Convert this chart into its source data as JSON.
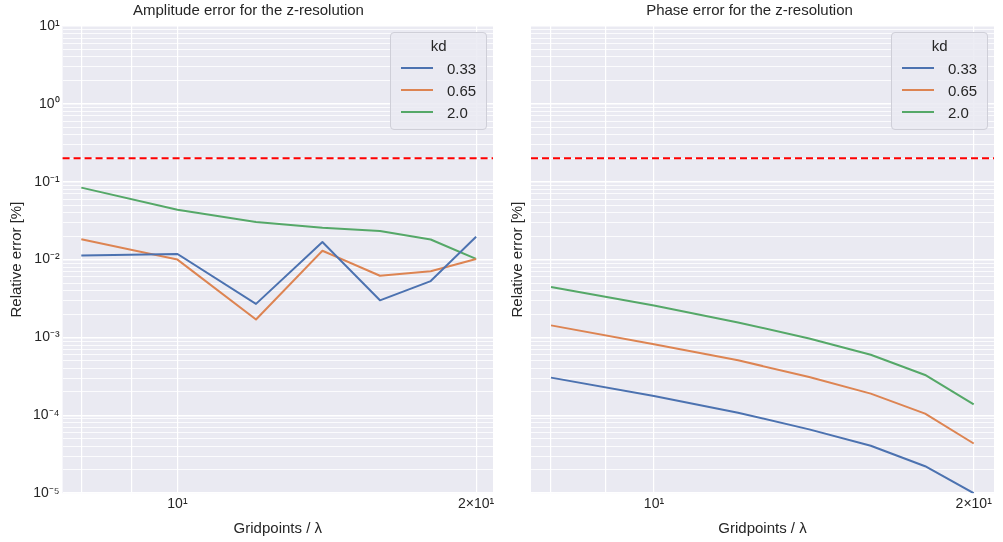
{
  "chart_data": [
    {
      "type": "line",
      "title": "Amplitude error for the z-resolution",
      "xlabel": "Gridpoints / λ",
      "ylabel": "Relative error [%]",
      "legend_title": "kd",
      "legend": "top right",
      "log": "xy",
      "grid": true,
      "line_style": "solid",
      "marker": "none",
      "x": [
        8,
        10,
        12,
        14,
        16,
        18,
        20
      ],
      "xlim": [
        7.66,
        20.8
      ],
      "xticks": [
        {
          "value": 8,
          "label": null
        },
        {
          "value": 9,
          "label": null
        },
        {
          "value": 10,
          "label": "10¹"
        },
        {
          "value": 20,
          "label": "2×10¹"
        }
      ],
      "ylim": [
        1e-05,
        10
      ],
      "yticks": [
        {
          "value": 1e-05,
          "label": "10⁻⁵"
        },
        {
          "value": 2e-05,
          "label": null
        },
        {
          "value": 3e-05,
          "label": null
        },
        {
          "value": 4e-05,
          "label": null
        },
        {
          "value": 5e-05,
          "label": null
        },
        {
          "value": 6e-05,
          "label": null
        },
        {
          "value": 7e-05,
          "label": null
        },
        {
          "value": 8e-05,
          "label": null
        },
        {
          "value": 9e-05,
          "label": null
        },
        {
          "value": 0.0001,
          "label": "10⁻⁴"
        },
        {
          "value": 0.0002,
          "label": null
        },
        {
          "value": 0.0003,
          "label": null
        },
        {
          "value": 0.0004,
          "label": null
        },
        {
          "value": 0.0005,
          "label": null
        },
        {
          "value": 0.0006,
          "label": null
        },
        {
          "value": 0.0007,
          "label": null
        },
        {
          "value": 0.0008,
          "label": null
        },
        {
          "value": 0.0009,
          "label": null
        },
        {
          "value": 0.001,
          "label": "10⁻³"
        },
        {
          "value": 0.002,
          "label": null
        },
        {
          "value": 0.003,
          "label": null
        },
        {
          "value": 0.004,
          "label": null
        },
        {
          "value": 0.005,
          "label": null
        },
        {
          "value": 0.006,
          "label": null
        },
        {
          "value": 0.007,
          "label": null
        },
        {
          "value": 0.008,
          "label": null
        },
        {
          "value": 0.009,
          "label": null
        },
        {
          "value": 0.01,
          "label": "10⁻²"
        },
        {
          "value": 0.02,
          "label": null
        },
        {
          "value": 0.03,
          "label": null
        },
        {
          "value": 0.04,
          "label": null
        },
        {
          "value": 0.05,
          "label": null
        },
        {
          "value": 0.06,
          "label": null
        },
        {
          "value": 0.07,
          "label": null
        },
        {
          "value": 0.08,
          "label": null
        },
        {
          "value": 0.09,
          "label": null
        },
        {
          "value": 0.1,
          "label": "10⁻¹"
        },
        {
          "value": 0.2,
          "label": null
        },
        {
          "value": 0.3,
          "label": null
        },
        {
          "value": 0.4,
          "label": null
        },
        {
          "value": 0.5,
          "label": null
        },
        {
          "value": 0.6,
          "label": null
        },
        {
          "value": 0.7,
          "label": null
        },
        {
          "value": 0.8,
          "label": null
        },
        {
          "value": 0.9,
          "label": null
        },
        {
          "value": 1,
          "label": "10⁰"
        },
        {
          "value": 2,
          "label": null
        },
        {
          "value": 3,
          "label": null
        },
        {
          "value": 4,
          "label": null
        },
        {
          "value": 5,
          "label": null
        },
        {
          "value": 6,
          "label": null
        },
        {
          "value": 7,
          "label": null
        },
        {
          "value": 8,
          "label": null
        },
        {
          "value": 9,
          "label": null
        },
        {
          "value": 10,
          "label": "10¹"
        }
      ],
      "ref_lines": [
        {
          "axis": "y",
          "value": 0.2,
          "color": "#ff0000",
          "line_style": "dashed"
        }
      ],
      "series": [
        {
          "name": "0.33",
          "color": "#4c72b0",
          "values": [
            0.0113,
            0.0118,
            0.0027,
            0.0168,
            0.003,
            0.0053,
            0.0197
          ]
        },
        {
          "name": "0.65",
          "color": "#dd8452",
          "values": [
            0.0183,
            0.01,
            0.0017,
            0.013,
            0.0062,
            0.0071,
            0.0102
          ]
        },
        {
          "name": "2.0",
          "color": "#55a868",
          "values": [
            0.084,
            0.0436,
            0.0305,
            0.0256,
            0.0233,
            0.0181,
            0.0102
          ]
        }
      ]
    },
    {
      "type": "line",
      "title": "Phase error for the z-resolution",
      "xlabel": "Gridpoints / λ",
      "ylabel": "Relative error [%]",
      "legend_title": "kd",
      "legend": "top right",
      "log": "xy",
      "grid": true,
      "line_style": "solid",
      "marker": "none",
      "tick_labels": "x",
      "x": [
        8,
        10,
        12,
        14,
        16,
        18,
        20
      ],
      "xlim": [
        7.66,
        20.9
      ],
      "xticks": [
        {
          "value": 8,
          "label": null
        },
        {
          "value": 9,
          "label": null
        },
        {
          "value": 10,
          "label": "10¹"
        },
        {
          "value": 20,
          "label": "2×10¹"
        }
      ],
      "ylim": [
        1e-05,
        10
      ],
      "yticks": [
        {
          "value": 1e-05,
          "label": null
        },
        {
          "value": 2e-05,
          "label": null
        },
        {
          "value": 3e-05,
          "label": null
        },
        {
          "value": 4e-05,
          "label": null
        },
        {
          "value": 5e-05,
          "label": null
        },
        {
          "value": 6e-05,
          "label": null
        },
        {
          "value": 7e-05,
          "label": null
        },
        {
          "value": 8e-05,
          "label": null
        },
        {
          "value": 9e-05,
          "label": null
        },
        {
          "value": 0.0001,
          "label": null
        },
        {
          "value": 0.0002,
          "label": null
        },
        {
          "value": 0.0003,
          "label": null
        },
        {
          "value": 0.0004,
          "label": null
        },
        {
          "value": 0.0005,
          "label": null
        },
        {
          "value": 0.0006,
          "label": null
        },
        {
          "value": 0.0007,
          "label": null
        },
        {
          "value": 0.0008,
          "label": null
        },
        {
          "value": 0.0009,
          "label": null
        },
        {
          "value": 0.001,
          "label": null
        },
        {
          "value": 0.002,
          "label": null
        },
        {
          "value": 0.003,
          "label": null
        },
        {
          "value": 0.004,
          "label": null
        },
        {
          "value": 0.005,
          "label": null
        },
        {
          "value": 0.006,
          "label": null
        },
        {
          "value": 0.007,
          "label": null
        },
        {
          "value": 0.008,
          "label": null
        },
        {
          "value": 0.009,
          "label": null
        },
        {
          "value": 0.01,
          "label": null
        },
        {
          "value": 0.02,
          "label": null
        },
        {
          "value": 0.03,
          "label": null
        },
        {
          "value": 0.04,
          "label": null
        },
        {
          "value": 0.05,
          "label": null
        },
        {
          "value": 0.06,
          "label": null
        },
        {
          "value": 0.07,
          "label": null
        },
        {
          "value": 0.08,
          "label": null
        },
        {
          "value": 0.09,
          "label": null
        },
        {
          "value": 0.1,
          "label": null
        },
        {
          "value": 0.2,
          "label": null
        },
        {
          "value": 0.3,
          "label": null
        },
        {
          "value": 0.4,
          "label": null
        },
        {
          "value": 0.5,
          "label": null
        },
        {
          "value": 0.6,
          "label": null
        },
        {
          "value": 0.7,
          "label": null
        },
        {
          "value": 0.8,
          "label": null
        },
        {
          "value": 0.9,
          "label": null
        },
        {
          "value": 1,
          "label": null
        },
        {
          "value": 2,
          "label": null
        },
        {
          "value": 3,
          "label": null
        },
        {
          "value": 4,
          "label": null
        },
        {
          "value": 5,
          "label": null
        },
        {
          "value": 6,
          "label": null
        },
        {
          "value": 7,
          "label": null
        },
        {
          "value": 8,
          "label": null
        },
        {
          "value": 9,
          "label": null
        },
        {
          "value": 10,
          "label": null
        }
      ],
      "ref_lines": [
        {
          "axis": "y",
          "value": 0.2,
          "color": "#ff0000",
          "line_style": "dashed"
        }
      ],
      "series": [
        {
          "name": "0.33",
          "color": "#4c72b0",
          "values": [
            0.000305,
            0.000177,
            0.000108,
            6.6e-05,
            4.07e-05,
            2.22e-05,
            1e-05
          ]
        },
        {
          "name": "0.65",
          "color": "#dd8452",
          "values": [
            0.00143,
            0.00082,
            0.00051,
            0.00031,
            0.00019,
            0.000105,
            4.35e-05
          ]
        },
        {
          "name": "2.0",
          "color": "#55a868",
          "values": [
            0.00446,
            0.00258,
            0.00156,
            0.00097,
            0.0006,
            0.00033,
            0.000138
          ]
        }
      ]
    }
  ]
}
